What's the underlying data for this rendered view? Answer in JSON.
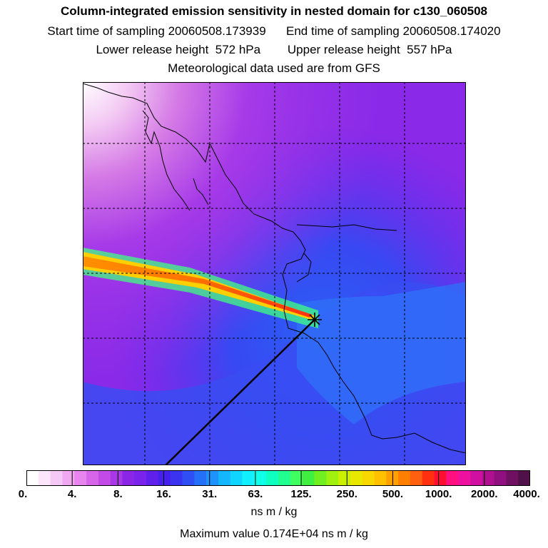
{
  "header": {
    "title": "Column-integrated emission sensitivity in nested domain for c130_060508",
    "start_label": "Start time of sampling",
    "start_value": "20060508.173939",
    "end_label": "End time of sampling",
    "end_value": "20060508.174020",
    "lower_label": "Lower release height",
    "lower_value": "572 hPa",
    "upper_label": "Upper release height",
    "upper_value": "557 hPa",
    "met_line": "Meteorological data used are from GFS"
  },
  "colorbar": {
    "tick_labels": [
      "0.",
      "4.",
      "8.",
      "16.",
      "31.",
      "63.",
      "125.",
      "250.",
      "500.",
      "1000.",
      "2000.",
      "4000."
    ],
    "colors": [
      "#ffffff",
      "#fbe6fb",
      "#f6c8f6",
      "#f0a8f0",
      "#e884ee",
      "#d765ea",
      "#c24ae6",
      "#a837e6",
      "#8b26e6",
      "#7a23ea",
      "#5f20ec",
      "#4620ee",
      "#3a33f0",
      "#2f4ff5",
      "#2670f8",
      "#1d93fb",
      "#14b6fd",
      "#10d6ff",
      "#10f0ff",
      "#10ffe8",
      "#10ffc0",
      "#20ff90",
      "#40ff60",
      "#40f040",
      "#70f020",
      "#a0f010",
      "#c8f000",
      "#e8e800",
      "#f8d800",
      "#ffc000",
      "#ffa000",
      "#ff8000",
      "#ff6010",
      "#ff3010",
      "#ff1030",
      "#ff1080",
      "#f010a0",
      "#d010a0",
      "#b01090",
      "#901080",
      "#701060",
      "#501048"
    ],
    "units": "ns m / kg"
  },
  "max_value_text": "Maximum value  0.174E+04 ns m / kg",
  "map": {
    "receptor_marker": "star-icon"
  }
}
